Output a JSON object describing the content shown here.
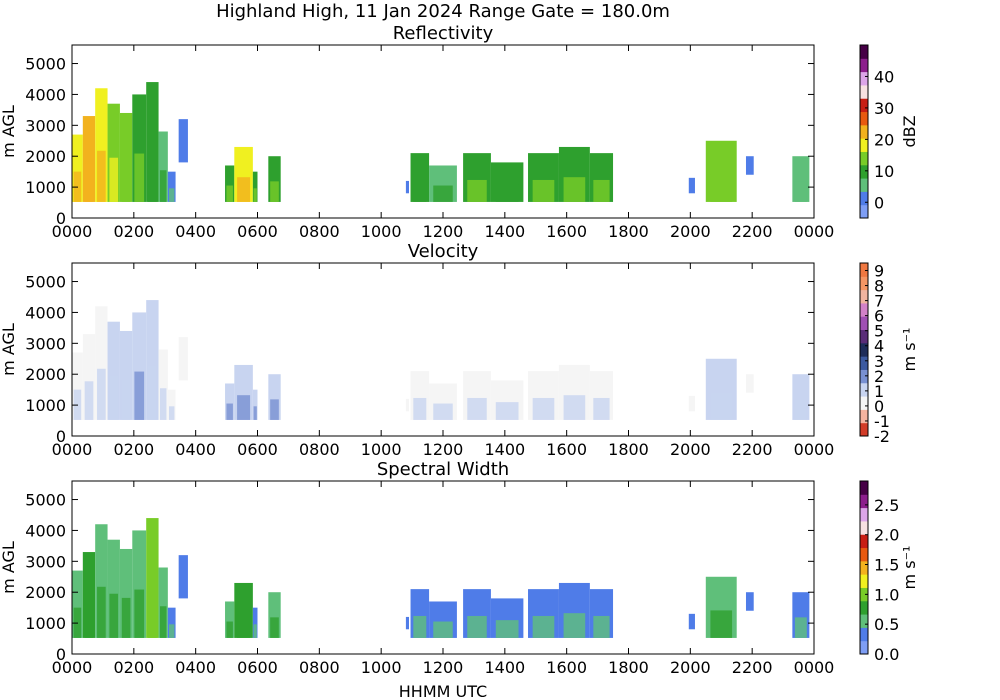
{
  "figure": {
    "title": "Highland High, 11 Jan 2024 Range Gate = 180.0m",
    "xlabel": "HHMM UTC"
  },
  "chart_data": [
    {
      "type": "heatmap",
      "title": "Reflectivity",
      "ylabel": "m AGL",
      "xlim": [
        0,
        24
      ],
      "ylim": [
        0,
        5600
      ],
      "xticks": [
        0,
        2,
        4,
        6,
        8,
        10,
        12,
        14,
        16,
        18,
        20,
        22,
        24
      ],
      "xtick_labels": [
        "0000",
        "0200",
        "0400",
        "0600",
        "0800",
        "1000",
        "1200",
        "1400",
        "1600",
        "1800",
        "2000",
        "2200",
        "0000"
      ],
      "yticks": [
        0,
        1000,
        2000,
        3000,
        4000,
        5000
      ],
      "ytick_labels": [
        "0",
        "1000",
        "2000",
        "3000",
        "4000",
        "5000"
      ],
      "colorbar": {
        "label": "dBZ",
        "range": [
          -5,
          50
        ],
        "ticks": [
          0,
          10,
          20,
          30,
          40
        ],
        "tick_labels": [
          "0",
          "10",
          "20",
          "30",
          "40"
        ],
        "colors": [
          "#7e9ef5",
          "#4f7ce8",
          "#5fbf7a",
          "#2ea02e",
          "#78cc28",
          "#f0f020",
          "#f2b21e",
          "#e85a10",
          "#c81e14",
          "#f7e1e1",
          "#dca5e8",
          "#8c1e8c",
          "#460046"
        ]
      },
      "cells": [
        {
          "t0": 0.0,
          "t1": 0.35,
          "hmax": 2700,
          "v": 18
        },
        {
          "t0": 0.35,
          "t1": 0.75,
          "hmax": 3300,
          "v": 21
        },
        {
          "t0": 0.75,
          "t1": 1.15,
          "hmax": 4200,
          "v": 20
        },
        {
          "t0": 1.15,
          "t1": 1.55,
          "hmax": 3700,
          "v": 16
        },
        {
          "t0": 1.55,
          "t1": 1.95,
          "hmax": 3400,
          "v": 12
        },
        {
          "t0": 1.95,
          "t1": 2.4,
          "hmax": 4000,
          "v": 11
        },
        {
          "t0": 2.4,
          "t1": 2.8,
          "hmax": 4400,
          "v": 8
        },
        {
          "t0": 2.8,
          "t1": 3.1,
          "hmax": 2800,
          "v": 5
        },
        {
          "t0": 3.1,
          "t1": 3.35,
          "hmax": 1500,
          "v": 2
        },
        {
          "t0": 3.45,
          "t1": 3.75,
          "hmax": 3200,
          "v": 1,
          "hmin": 1800
        },
        {
          "t0": 4.95,
          "t1": 5.25,
          "hmax": 1700,
          "v": 11
        },
        {
          "t0": 5.25,
          "t1": 5.85,
          "hmax": 2300,
          "v": 19
        },
        {
          "t0": 5.85,
          "t1": 6.0,
          "hmax": 1500,
          "v": 10
        },
        {
          "t0": 6.35,
          "t1": 6.75,
          "hmax": 2000,
          "v": 9
        },
        {
          "t0": 10.8,
          "t1": 10.9,
          "hmax": 1200,
          "v": 3,
          "hmin": 800
        },
        {
          "t0": 10.95,
          "t1": 11.55,
          "hmax": 2100,
          "v": 8
        },
        {
          "t0": 11.55,
          "t1": 12.45,
          "hmax": 1700,
          "v": 7
        },
        {
          "t0": 12.65,
          "t1": 13.55,
          "hmax": 2100,
          "v": 9
        },
        {
          "t0": 13.55,
          "t1": 14.6,
          "hmax": 1800,
          "v": 8
        },
        {
          "t0": 14.75,
          "t1": 15.75,
          "hmax": 2100,
          "v": 9
        },
        {
          "t0": 15.75,
          "t1": 16.75,
          "hmax": 2300,
          "v": 10
        },
        {
          "t0": 16.75,
          "t1": 17.5,
          "hmax": 2100,
          "v": 9
        },
        {
          "t0": 19.95,
          "t1": 20.15,
          "hmax": 1300,
          "v": 2,
          "hmin": 800
        },
        {
          "t0": 20.5,
          "t1": 21.5,
          "hmax": 2500,
          "v": 12
        },
        {
          "t0": 21.8,
          "t1": 22.05,
          "hmax": 2000,
          "v": 3,
          "hmin": 1400
        },
        {
          "t0": 23.3,
          "t1": 23.85,
          "hmax": 2000,
          "v": 4
        }
      ]
    },
    {
      "type": "heatmap",
      "title": "Velocity",
      "ylabel": "m s⁻¹",
      "ylabel_left": "m AGL",
      "xlim": [
        0,
        24
      ],
      "ylim": [
        0,
        5600
      ],
      "xticks": [
        0,
        2,
        4,
        6,
        8,
        10,
        12,
        14,
        16,
        18,
        20,
        22,
        24
      ],
      "xtick_labels": [
        "0000",
        "0200",
        "0400",
        "0600",
        "0800",
        "1000",
        "1200",
        "1400",
        "1600",
        "1800",
        "2000",
        "2200",
        "0000"
      ],
      "yticks": [
        0,
        1000,
        2000,
        3000,
        4000,
        5000
      ],
      "ytick_labels": [
        "0",
        "1000",
        "2000",
        "3000",
        "4000",
        "5000"
      ],
      "colorbar": {
        "label": "m s⁻¹",
        "range": [
          -2,
          9.5
        ],
        "ticks": [
          -2,
          -1,
          0,
          1,
          2,
          3,
          4,
          5,
          6,
          7,
          8,
          9
        ],
        "tick_labels": [
          "-2",
          "-1",
          "0",
          "1",
          "2",
          "3",
          "4",
          "5",
          "6",
          "7",
          "8",
          "9"
        ],
        "colors": [
          "#d23c28",
          "#f5b4a0",
          "#f5f5f5",
          "#c8d4f0",
          "#7890d2",
          "#3c5aa0",
          "#1e2d5a",
          "#5a2d78",
          "#a050b4",
          "#d282c8",
          "#f0b4a0",
          "#f59664",
          "#f07841"
        ]
      },
      "cells": [
        {
          "t0": 0.0,
          "t1": 0.35,
          "hmax": 2700,
          "v": 0.3
        },
        {
          "t0": 0.35,
          "t1": 0.75,
          "hmax": 3300,
          "v": 0.4
        },
        {
          "t0": 0.75,
          "t1": 1.15,
          "hmax": 4200,
          "v": 0.6
        },
        {
          "t0": 1.15,
          "t1": 1.55,
          "hmax": 3700,
          "v": 0.7
        },
        {
          "t0": 1.55,
          "t1": 1.95,
          "hmax": 3400,
          "v": 0.8
        },
        {
          "t0": 1.95,
          "t1": 2.4,
          "hmax": 4000,
          "v": 0.9
        },
        {
          "t0": 2.4,
          "t1": 2.8,
          "hmax": 4400,
          "v": 0.7
        },
        {
          "t0": 2.8,
          "t1": 3.1,
          "hmax": 2800,
          "v": 0.6
        },
        {
          "t0": 3.1,
          "t1": 3.35,
          "hmax": 1500,
          "v": 0.5
        },
        {
          "t0": 3.45,
          "t1": 3.75,
          "hmax": 3200,
          "v": 0.3,
          "hmin": 1800
        },
        {
          "t0": 4.95,
          "t1": 5.25,
          "hmax": 1700,
          "v": 1.0
        },
        {
          "t0": 5.25,
          "t1": 5.85,
          "hmax": 2300,
          "v": 1.4
        },
        {
          "t0": 5.85,
          "t1": 6.0,
          "hmax": 1500,
          "v": 1.0
        },
        {
          "t0": 6.35,
          "t1": 6.75,
          "hmax": 2000,
          "v": 0.9
        },
        {
          "t0": 10.8,
          "t1": 10.9,
          "hmax": 1200,
          "v": 0.5,
          "hmin": 800
        },
        {
          "t0": 10.95,
          "t1": 11.55,
          "hmax": 2100,
          "v": 0.6
        },
        {
          "t0": 11.55,
          "t1": 12.45,
          "hmax": 1700,
          "v": 0.5
        },
        {
          "t0": 12.65,
          "t1": 13.55,
          "hmax": 2100,
          "v": 0.5
        },
        {
          "t0": 13.55,
          "t1": 14.6,
          "hmax": 1800,
          "v": 0.4
        },
        {
          "t0": 14.75,
          "t1": 15.75,
          "hmax": 2100,
          "v": 0.4
        },
        {
          "t0": 15.75,
          "t1": 16.75,
          "hmax": 2300,
          "v": 0.5
        },
        {
          "t0": 16.75,
          "t1": 17.5,
          "hmax": 2100,
          "v": 0.4
        },
        {
          "t0": 19.95,
          "t1": 20.15,
          "hmax": 1300,
          "v": 0.4,
          "hmin": 800
        },
        {
          "t0": 20.5,
          "t1": 21.5,
          "hmax": 2500,
          "v": 0.7
        },
        {
          "t0": 21.8,
          "t1": 22.05,
          "hmax": 2000,
          "v": 0.5,
          "hmin": 1400
        },
        {
          "t0": 23.3,
          "t1": 23.85,
          "hmax": 2000,
          "v": 0.8
        }
      ]
    },
    {
      "type": "heatmap",
      "title": "Spectral Width",
      "ylabel": "m s⁻¹",
      "ylabel_left": "m AGL",
      "xlim": [
        0,
        24
      ],
      "ylim": [
        0,
        5600
      ],
      "xticks": [
        0,
        2,
        4,
        6,
        8,
        10,
        12,
        14,
        16,
        18,
        20,
        22,
        24
      ],
      "xtick_labels": [
        "0000",
        "0200",
        "0400",
        "0600",
        "0800",
        "1000",
        "1200",
        "1400",
        "1600",
        "1800",
        "2000",
        "2200",
        "0000"
      ],
      "yticks": [
        0,
        1000,
        2000,
        3000,
        4000,
        5000
      ],
      "ytick_labels": [
        "0",
        "1000",
        "2000",
        "3000",
        "4000",
        "5000"
      ],
      "colorbar": {
        "label": "m s⁻¹",
        "range": [
          0,
          2.9
        ],
        "ticks": [
          0,
          0.5,
          1.0,
          1.5,
          2.0,
          2.5
        ],
        "tick_labels": [
          "0.0",
          "0.5",
          "1.0",
          "1.5",
          "2.0",
          "2.5"
        ],
        "colors": [
          "#7e9ef5",
          "#4f7ce8",
          "#5fbf7a",
          "#2ea02e",
          "#78cc28",
          "#f0f020",
          "#f2b21e",
          "#e85a10",
          "#c81e14",
          "#f7e1e1",
          "#dca5e8",
          "#8c1e8c",
          "#460046"
        ]
      },
      "cells": [
        {
          "t0": 0.0,
          "t1": 0.35,
          "hmax": 2700,
          "v": 0.6
        },
        {
          "t0": 0.35,
          "t1": 0.75,
          "hmax": 3300,
          "v": 0.7
        },
        {
          "t0": 0.75,
          "t1": 1.15,
          "hmax": 4200,
          "v": 0.5
        },
        {
          "t0": 1.15,
          "t1": 1.55,
          "hmax": 3700,
          "v": 0.5
        },
        {
          "t0": 1.55,
          "t1": 1.95,
          "hmax": 3400,
          "v": 0.5
        },
        {
          "t0": 1.95,
          "t1": 2.4,
          "hmax": 4000,
          "v": 0.6
        },
        {
          "t0": 2.4,
          "t1": 2.8,
          "hmax": 4400,
          "v": 0.9
        },
        {
          "t0": 2.8,
          "t1": 3.1,
          "hmax": 2800,
          "v": 0.6
        },
        {
          "t0": 3.1,
          "t1": 3.35,
          "hmax": 1500,
          "v": 0.3
        },
        {
          "t0": 3.45,
          "t1": 3.75,
          "hmax": 3200,
          "v": 0.3,
          "hmin": 1800
        },
        {
          "t0": 4.95,
          "t1": 5.25,
          "hmax": 1700,
          "v": 0.5
        },
        {
          "t0": 5.25,
          "t1": 5.85,
          "hmax": 2300,
          "v": 0.7
        },
        {
          "t0": 5.85,
          "t1": 6.0,
          "hmax": 1500,
          "v": 0.4
        },
        {
          "t0": 6.35,
          "t1": 6.75,
          "hmax": 2000,
          "v": 0.6
        },
        {
          "t0": 10.8,
          "t1": 10.9,
          "hmax": 1200,
          "v": 0.3,
          "hmin": 800
        },
        {
          "t0": 10.95,
          "t1": 11.55,
          "hmax": 2100,
          "v": 0.4
        },
        {
          "t0": 11.55,
          "t1": 12.45,
          "hmax": 1700,
          "v": 0.3
        },
        {
          "t0": 12.65,
          "t1": 13.55,
          "hmax": 2100,
          "v": 0.3
        },
        {
          "t0": 13.55,
          "t1": 14.6,
          "hmax": 1800,
          "v": 0.3
        },
        {
          "t0": 14.75,
          "t1": 15.75,
          "hmax": 2100,
          "v": 0.3
        },
        {
          "t0": 15.75,
          "t1": 16.75,
          "hmax": 2300,
          "v": 0.4
        },
        {
          "t0": 16.75,
          "t1": 17.5,
          "hmax": 2100,
          "v": 0.3
        },
        {
          "t0": 19.95,
          "t1": 20.15,
          "hmax": 1300,
          "v": 0.3,
          "hmin": 800
        },
        {
          "t0": 20.5,
          "t1": 21.5,
          "hmax": 2500,
          "v": 0.5
        },
        {
          "t0": 21.8,
          "t1": 22.05,
          "hmax": 2000,
          "v": 0.3,
          "hmin": 1400
        },
        {
          "t0": 23.3,
          "t1": 23.85,
          "hmax": 2000,
          "v": 0.4
        }
      ]
    }
  ]
}
